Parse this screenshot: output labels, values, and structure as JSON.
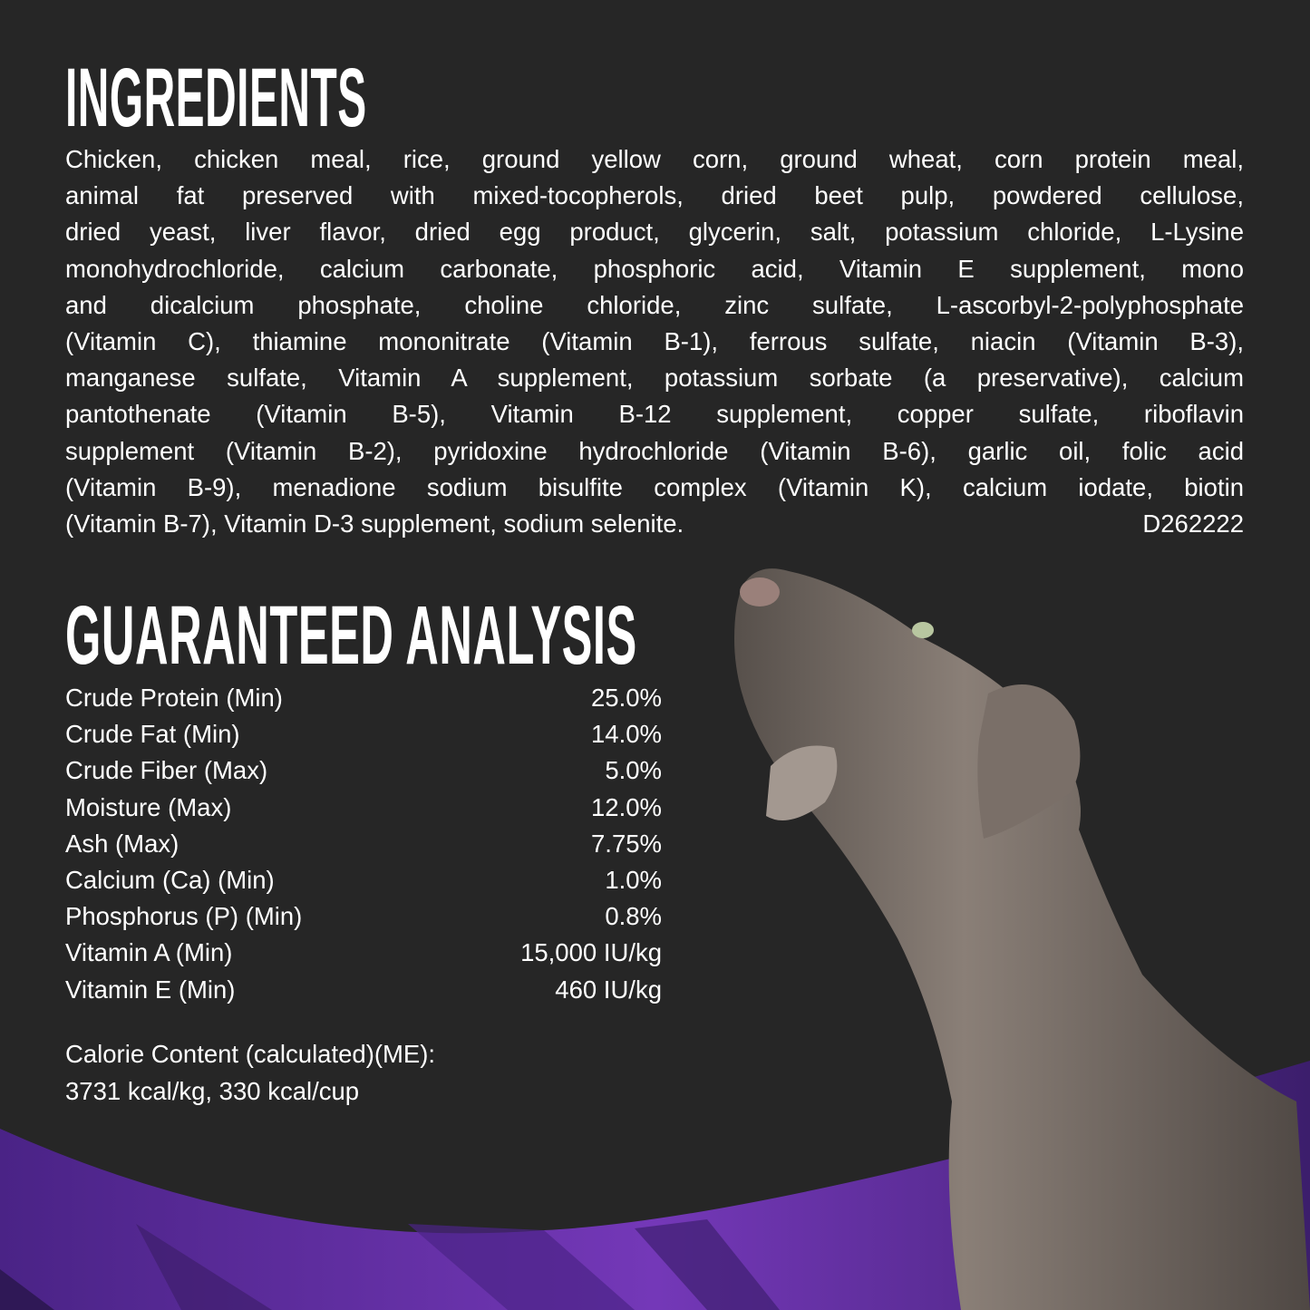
{
  "ingredients": {
    "title": "INGREDIENTS",
    "lines": [
      "Chicken, chicken meal, rice, ground yellow corn, ground wheat, corn protein meal,",
      "animal fat preserved with mixed-tocopherols, dried beet pulp, powdered cellulose,",
      "dried yeast, liver flavor, dried egg product, glycerin, salt, potassium chloride, L-Lysine",
      "monohydrochloride, calcium carbonate, phosphoric acid, Vitamin E supplement, mono",
      "and dicalcium phosphate, choline chloride, zinc sulfate, L-ascorbyl-2-polyphosphate",
      "(Vitamin C), thiamine mononitrate (Vitamin B-1), ferrous sulfate, niacin (Vitamin B-3),",
      "manganese sulfate, Vitamin A supplement, potassium sorbate (a preservative), calcium",
      "pantothenate (Vitamin B-5), Vitamin B-12 supplement, copper sulfate, riboflavin",
      "supplement (Vitamin B-2), pyridoxine hydrochloride (Vitamin B-6), garlic oil, folic acid",
      "(Vitamin B-9), menadione sodium bisulfite complex (Vitamin K), calcium iodate, biotin"
    ],
    "last_line": "(Vitamin B-7), Vitamin D-3 supplement, sodium selenite.",
    "code": "D262222"
  },
  "analysis": {
    "title": "GUARANTEED ANALYSIS",
    "rows": [
      {
        "label": "Crude Protein (Min)",
        "value": "25.0%"
      },
      {
        "label": "Crude Fat (Min)",
        "value": "14.0%"
      },
      {
        "label": "Crude Fiber (Max)",
        "value": "5.0%"
      },
      {
        "label": "Moisture (Max)",
        "value": "12.0%"
      },
      {
        "label": "Ash (Max)",
        "value": "7.75%"
      },
      {
        "label": "Calcium (Ca) (Min)",
        "value": "1.0%"
      },
      {
        "label": "Phosphorus (P) (Min)",
        "value": "0.8%"
      },
      {
        "label": "Vitamin A (Min)",
        "value": "15,000 IU/kg"
      },
      {
        "label": "Vitamin E (Min)",
        "value": "460 IU/kg"
      }
    ],
    "calorie_label": "Calorie Content (calculated)(ME):",
    "calorie_value": "3731 kcal/kg, 330 kcal/cup"
  },
  "colors": {
    "background": "#262626",
    "accent_purple": "#6a2fb0",
    "dark_purple": "#3a1f66",
    "dog": "#6e645e"
  },
  "image": {
    "subject": "dog-photo"
  }
}
